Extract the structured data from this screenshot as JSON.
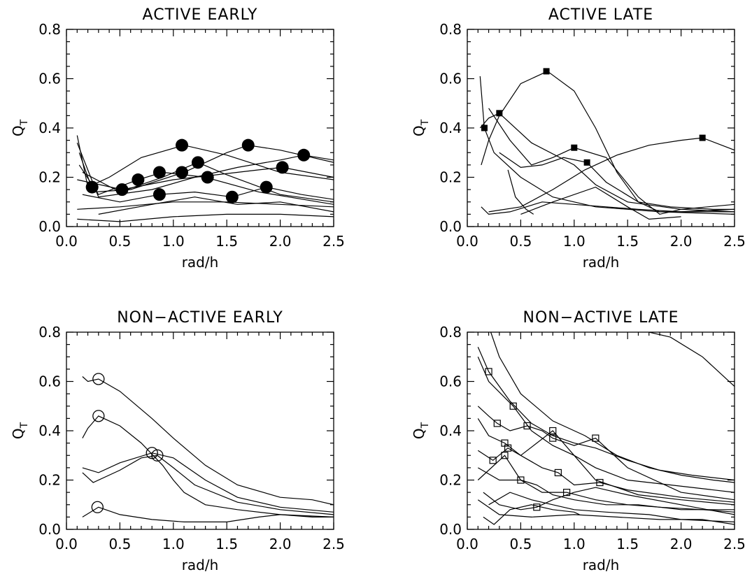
{
  "chart_data": [
    {
      "type": "line",
      "title": "ACTIVE EARLY",
      "xlabel": "rad/h",
      "ylabel": "Q",
      "ylabel_sub": "T",
      "xlim": [
        0.0,
        2.5
      ],
      "ylim": [
        0.0,
        0.8
      ],
      "xticks": [
        0.0,
        0.5,
        1.0,
        1.5,
        2.0,
        2.5
      ],
      "xtick_labels": [
        "0.0",
        "0.5",
        "1.0",
        "1.5",
        "2.0",
        "2.5"
      ],
      "yticks": [
        0.0,
        0.2,
        0.4,
        0.6,
        0.8
      ],
      "ytick_labels": [
        "0.0",
        "0.2",
        "0.4",
        "0.6",
        "0.8"
      ],
      "marker": "filled-circle",
      "series": [
        {
          "x": [
            0.1,
            0.2,
            0.4,
            0.7,
            1.1,
            1.5,
            2.0,
            2.5
          ],
          "y": [
            0.37,
            0.16,
            0.2,
            0.28,
            0.33,
            0.29,
            0.22,
            0.19
          ]
        },
        {
          "x": [
            0.12,
            0.25,
            0.6,
            1.1,
            1.5,
            1.7,
            2.0,
            2.5
          ],
          "y": [
            0.3,
            0.14,
            0.15,
            0.22,
            0.3,
            0.33,
            0.31,
            0.26
          ]
        },
        {
          "x": [
            0.1,
            0.3,
            0.8,
            1.2,
            1.6,
            2.0,
            2.22,
            2.5
          ],
          "y": [
            0.34,
            0.12,
            0.15,
            0.2,
            0.24,
            0.27,
            0.29,
            0.27
          ]
        },
        {
          "x": [
            0.12,
            0.3,
            0.67,
            0.9,
            1.3,
            1.8,
            2.5
          ],
          "y": [
            0.25,
            0.13,
            0.19,
            0.22,
            0.2,
            0.14,
            0.09
          ]
        },
        {
          "x": [
            0.15,
            0.5,
            0.9,
            1.23,
            1.5,
            2.0,
            2.5
          ],
          "y": [
            0.22,
            0.14,
            0.2,
            0.26,
            0.21,
            0.13,
            0.1
          ]
        },
        {
          "x": [
            0.1,
            0.52,
            1.0,
            1.4,
            1.8,
            2.02,
            2.5
          ],
          "y": [
            0.19,
            0.15,
            0.19,
            0.21,
            0.23,
            0.24,
            0.2
          ]
        },
        {
          "x": [
            0.15,
            0.5,
            0.87,
            1.2,
            1.55,
            1.87,
            2.2,
            2.5
          ],
          "y": [
            0.13,
            0.1,
            0.13,
            0.14,
            0.12,
            0.16,
            0.13,
            0.11
          ]
        },
        {
          "x": [
            0.1,
            0.5,
            1.0,
            1.5,
            2.0,
            2.5
          ],
          "y": [
            0.07,
            0.08,
            0.1,
            0.1,
            0.09,
            0.08
          ]
        },
        {
          "x": [
            0.1,
            0.5,
            1.0,
            1.5,
            2.0,
            2.5
          ],
          "y": [
            0.03,
            0.02,
            0.04,
            0.05,
            0.05,
            0.04
          ]
        },
        {
          "x": [
            0.3,
            0.8,
            1.2,
            1.6,
            2.0,
            2.5
          ],
          "y": [
            0.05,
            0.09,
            0.12,
            0.09,
            0.1,
            0.06
          ]
        }
      ],
      "markers": [
        {
          "x": 0.24,
          "y": 0.16
        },
        {
          "x": 0.52,
          "y": 0.15
        },
        {
          "x": 0.67,
          "y": 0.19
        },
        {
          "x": 0.87,
          "y": 0.22
        },
        {
          "x": 0.87,
          "y": 0.13
        },
        {
          "x": 1.08,
          "y": 0.33
        },
        {
          "x": 1.08,
          "y": 0.22
        },
        {
          "x": 1.23,
          "y": 0.26
        },
        {
          "x": 1.32,
          "y": 0.2
        },
        {
          "x": 1.55,
          "y": 0.12
        },
        {
          "x": 1.7,
          "y": 0.33
        },
        {
          "x": 1.87,
          "y": 0.16
        },
        {
          "x": 2.02,
          "y": 0.24
        },
        {
          "x": 2.22,
          "y": 0.29
        }
      ]
    },
    {
      "type": "line",
      "title": "ACTIVE LATE",
      "xlabel": "rad/h",
      "ylabel": "Q",
      "ylabel_sub": "T",
      "xlim": [
        0.0,
        2.5
      ],
      "ylim": [
        0.0,
        0.8
      ],
      "xticks": [
        0.0,
        0.5,
        1.0,
        1.5,
        2.0,
        2.5
      ],
      "xtick_labels": [
        "0.0",
        "0.5",
        "1.0",
        "1.5",
        "2.0",
        "2.5"
      ],
      "yticks": [
        0.0,
        0.2,
        0.4,
        0.6,
        0.8
      ],
      "ytick_labels": [
        "0.0",
        "0.2",
        "0.4",
        "0.6",
        "0.8"
      ],
      "marker": "filled-square",
      "series": [
        {
          "x": [
            0.13,
            0.2,
            0.3,
            0.5,
            0.75,
            1.0,
            1.2,
            1.4,
            1.6,
            1.8,
            2.2,
            2.5
          ],
          "y": [
            0.25,
            0.35,
            0.45,
            0.58,
            0.63,
            0.55,
            0.4,
            0.22,
            0.1,
            0.06,
            0.06,
            0.06
          ]
        },
        {
          "x": [
            0.12,
            0.16,
            0.25,
            0.5,
            0.8,
            1.0,
            1.2,
            1.5,
            1.8,
            2.5
          ],
          "y": [
            0.61,
            0.4,
            0.3,
            0.2,
            0.12,
            0.1,
            0.08,
            0.07,
            0.06,
            0.05
          ]
        },
        {
          "x": [
            0.12,
            0.2,
            0.3,
            0.6,
            1.0,
            1.2,
            1.5,
            2.0,
            2.5
          ],
          "y": [
            0.4,
            0.44,
            0.46,
            0.34,
            0.25,
            0.17,
            0.1,
            0.07,
            0.06
          ]
        },
        {
          "x": [
            0.2,
            0.4,
            0.6,
            0.8,
            1.0,
            1.3,
            1.6,
            1.8,
            2.0,
            2.5
          ],
          "y": [
            0.48,
            0.35,
            0.25,
            0.28,
            0.32,
            0.28,
            0.12,
            0.05,
            0.07,
            0.09
          ]
        },
        {
          "x": [
            0.3,
            0.5,
            0.7,
            0.9,
            1.12,
            1.3,
            1.6,
            1.9,
            2.3,
            2.5
          ],
          "y": [
            0.3,
            0.24,
            0.25,
            0.28,
            0.26,
            0.18,
            0.1,
            0.08,
            0.07,
            0.07
          ]
        },
        {
          "x": [
            0.38,
            0.45,
            0.55,
            0.62
          ],
          "y": [
            0.23,
            0.12,
            0.07,
            0.05
          ]
        },
        {
          "x": [
            0.2,
            0.5,
            0.8,
            1.1,
            1.4,
            1.7,
            2.0,
            2.2,
            2.5
          ],
          "y": [
            0.06,
            0.08,
            0.15,
            0.23,
            0.29,
            0.33,
            0.35,
            0.36,
            0.31
          ]
        },
        {
          "x": [
            0.13,
            0.2,
            0.4,
            0.7,
            1.0,
            1.3,
            1.6,
            2.0,
            2.5
          ],
          "y": [
            0.08,
            0.05,
            0.06,
            0.1,
            0.09,
            0.08,
            0.07,
            0.06,
            0.07
          ]
        },
        {
          "x": [
            0.5,
            0.8,
            1.2,
            1.5,
            1.7,
            2.0
          ],
          "y": [
            0.05,
            0.1,
            0.16,
            0.08,
            0.03,
            0.04
          ]
        }
      ],
      "markers": [
        {
          "x": 0.16,
          "y": 0.4
        },
        {
          "x": 0.3,
          "y": 0.46
        },
        {
          "x": 0.74,
          "y": 0.63
        },
        {
          "x": 1.0,
          "y": 0.32
        },
        {
          "x": 1.12,
          "y": 0.26
        },
        {
          "x": 2.2,
          "y": 0.36
        }
      ]
    },
    {
      "type": "line",
      "title": "NON−ACTIVE EARLY",
      "xlabel": "rad/h",
      "ylabel": "Q",
      "ylabel_sub": "T",
      "xlim": [
        0.0,
        2.5
      ],
      "ylim": [
        0.0,
        0.8
      ],
      "xticks": [
        0.0,
        0.5,
        1.0,
        1.5,
        2.0,
        2.5
      ],
      "xtick_labels": [
        "0.0",
        "0.5",
        "1.0",
        "1.5",
        "2.0",
        "2.5"
      ],
      "yticks": [
        0.0,
        0.2,
        0.4,
        0.6,
        0.8
      ],
      "ytick_labels": [
        "0.0",
        "0.2",
        "0.4",
        "0.6",
        "0.8"
      ],
      "marker": "open-circle",
      "series": [
        {
          "x": [
            0.15,
            0.2,
            0.3,
            0.5,
            0.8,
            1.0,
            1.3,
            1.6,
            2.0,
            2.3,
            2.5
          ],
          "y": [
            0.62,
            0.6,
            0.61,
            0.56,
            0.45,
            0.37,
            0.26,
            0.18,
            0.13,
            0.12,
            0.1
          ]
        },
        {
          "x": [
            0.15,
            0.2,
            0.3,
            0.5,
            0.7,
            0.9,
            1.0,
            1.1,
            1.3,
            1.6,
            2.0,
            2.5
          ],
          "y": [
            0.37,
            0.41,
            0.46,
            0.42,
            0.35,
            0.26,
            0.2,
            0.15,
            0.1,
            0.08,
            0.06,
            0.05
          ]
        },
        {
          "x": [
            0.15,
            0.3,
            0.5,
            0.8,
            1.0,
            1.3,
            1.6,
            2.0,
            2.5
          ],
          "y": [
            0.25,
            0.23,
            0.27,
            0.31,
            0.29,
            0.2,
            0.13,
            0.09,
            0.07
          ]
        },
        {
          "x": [
            0.15,
            0.25,
            0.5,
            0.7,
            0.85,
            1.0,
            1.2,
            1.6,
            2.0,
            2.5
          ],
          "y": [
            0.23,
            0.19,
            0.24,
            0.29,
            0.3,
            0.25,
            0.18,
            0.11,
            0.08,
            0.06
          ]
        },
        {
          "x": [
            0.15,
            0.3,
            0.5,
            0.8,
            1.1,
            1.5,
            1.8,
            2.0,
            2.3,
            2.5
          ],
          "y": [
            0.05,
            0.09,
            0.06,
            0.04,
            0.03,
            0.03,
            0.05,
            0.06,
            0.05,
            0.05
          ]
        }
      ],
      "markers": [
        {
          "x": 0.3,
          "y": 0.61
        },
        {
          "x": 0.3,
          "y": 0.46
        },
        {
          "x": 0.8,
          "y": 0.31
        },
        {
          "x": 0.85,
          "y": 0.3
        },
        {
          "x": 0.29,
          "y": 0.09
        }
      ]
    },
    {
      "type": "line",
      "title": "NON−ACTIVE LATE",
      "xlabel": "rad/h",
      "ylabel": "Q",
      "ylabel_sub": "T",
      "xlim": [
        0.0,
        2.5
      ],
      "ylim": [
        0.0,
        0.8
      ],
      "xticks": [
        0.0,
        0.5,
        1.0,
        1.5,
        2.0,
        2.5
      ],
      "xtick_labels": [
        "0.0",
        "0.5",
        "1.0",
        "1.5",
        "2.0",
        "2.5"
      ],
      "yticks": [
        0.0,
        0.2,
        0.4,
        0.6,
        0.8
      ],
      "ytick_labels": [
        "0.0",
        "0.2",
        "0.4",
        "0.6",
        "0.8"
      ],
      "marker": "open-square",
      "series": [
        {
          "x": [
            0.22,
            0.3,
            0.5,
            0.8,
            1.1,
            1.4,
            1.7,
            2.0,
            2.3,
            2.5
          ],
          "y": [
            0.8,
            0.7,
            0.55,
            0.44,
            0.38,
            0.3,
            0.25,
            0.22,
            0.2,
            0.19
          ]
        },
        {
          "x": [
            0.1,
            0.2,
            0.4,
            0.6,
            0.8,
            1.0,
            1.2,
            1.5,
            1.8,
            2.1,
            2.5
          ],
          "y": [
            0.74,
            0.64,
            0.52,
            0.43,
            0.38,
            0.35,
            0.33,
            0.28,
            0.24,
            0.22,
            0.2
          ]
        },
        {
          "x": [
            0.1,
            0.2,
            0.43,
            0.6,
            0.8,
            1.0,
            1.2,
            1.5,
            1.9,
            2.5
          ],
          "y": [
            0.7,
            0.6,
            0.5,
            0.4,
            0.34,
            0.3,
            0.25,
            0.2,
            0.18,
            0.15
          ]
        },
        {
          "x": [
            1.7,
            1.9,
            2.2,
            2.5
          ],
          "y": [
            0.8,
            0.78,
            0.7,
            0.58
          ]
        },
        {
          "x": [
            0.1,
            0.2,
            0.28,
            0.4,
            0.56,
            0.7,
            0.8,
            1.0,
            1.2,
            1.5,
            2.0,
            2.5
          ],
          "y": [
            0.5,
            0.46,
            0.43,
            0.4,
            0.42,
            0.4,
            0.37,
            0.34,
            0.37,
            0.25,
            0.15,
            0.12
          ]
        },
        {
          "x": [
            0.1,
            0.2,
            0.35,
            0.5,
            0.8,
            1.0,
            1.2,
            1.6,
            2.0,
            2.5
          ],
          "y": [
            0.45,
            0.38,
            0.35,
            0.3,
            0.4,
            0.3,
            0.2,
            0.14,
            0.12,
            0.1
          ]
        },
        {
          "x": [
            0.1,
            0.24,
            0.38,
            0.5,
            0.7,
            0.85,
            1.0,
            1.24,
            1.5,
            2.0,
            2.5
          ],
          "y": [
            0.32,
            0.28,
            0.33,
            0.3,
            0.25,
            0.23,
            0.18,
            0.19,
            0.16,
            0.13,
            0.11
          ]
        },
        {
          "x": [
            0.1,
            0.3,
            0.5,
            0.65,
            0.8,
            1.0,
            1.3,
            1.6,
            2.0,
            2.5
          ],
          "y": [
            0.25,
            0.2,
            0.2,
            0.18,
            0.14,
            0.12,
            0.1,
            0.1,
            0.08,
            0.08
          ]
        },
        {
          "x": [
            0.1,
            0.35,
            0.5,
            0.7,
            0.93,
            1.2,
            1.5,
            1.8,
            2.2,
            2.5
          ],
          "y": [
            0.2,
            0.3,
            0.2,
            0.15,
            0.15,
            0.12,
            0.1,
            0.09,
            0.08,
            0.07
          ]
        },
        {
          "x": [
            0.15,
            0.3,
            0.5,
            0.65,
            0.8,
            1.0,
            1.2,
            1.5,
            2.0,
            2.5
          ],
          "y": [
            0.15,
            0.1,
            0.08,
            0.09,
            0.12,
            0.15,
            0.17,
            0.14,
            0.1,
            0.06
          ]
        },
        {
          "x": [
            0.15,
            0.25,
            0.4,
            0.6,
            0.8,
            1.0,
            1.05
          ],
          "y": [
            0.05,
            0.02,
            0.08,
            0.1,
            0.08,
            0.07,
            0.06
          ]
        },
        {
          "x": [
            0.2,
            0.4,
            0.6,
            0.8,
            1.0,
            1.3,
            1.7,
            2.0,
            2.5
          ],
          "y": [
            0.1,
            0.15,
            0.12,
            0.1,
            0.08,
            0.07,
            0.06,
            0.04,
            0.03
          ]
        },
        {
          "x": [
            0.1,
            0.3,
            0.6,
            1.0,
            1.4,
            1.8,
            2.2,
            2.5
          ],
          "y": [
            0.12,
            0.06,
            0.05,
            0.06,
            0.05,
            0.04,
            0.04,
            0.02
          ]
        }
      ],
      "markers": [
        {
          "x": 0.2,
          "y": 0.64
        },
        {
          "x": 0.43,
          "y": 0.5
        },
        {
          "x": 0.28,
          "y": 0.43
        },
        {
          "x": 0.56,
          "y": 0.42
        },
        {
          "x": 0.8,
          "y": 0.4
        },
        {
          "x": 0.8,
          "y": 0.37
        },
        {
          "x": 1.2,
          "y": 0.37
        },
        {
          "x": 0.35,
          "y": 0.35
        },
        {
          "x": 0.38,
          "y": 0.33
        },
        {
          "x": 0.35,
          "y": 0.3
        },
        {
          "x": 0.24,
          "y": 0.28
        },
        {
          "x": 0.5,
          "y": 0.2
        },
        {
          "x": 1.24,
          "y": 0.19
        },
        {
          "x": 0.85,
          "y": 0.23
        },
        {
          "x": 0.93,
          "y": 0.15
        },
        {
          "x": 0.65,
          "y": 0.09
        }
      ]
    }
  ]
}
